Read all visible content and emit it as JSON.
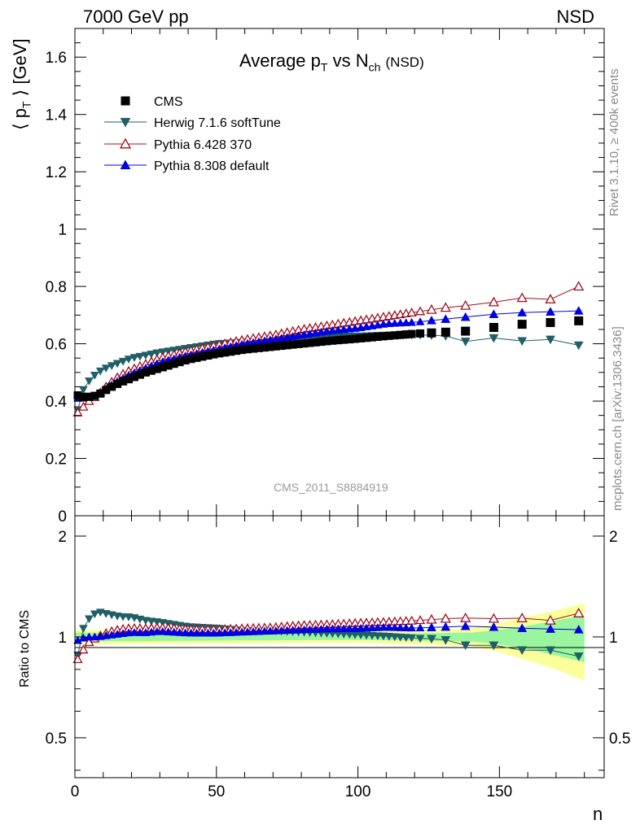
{
  "header": {
    "left": "7000 GeV pp",
    "right": "NSD"
  },
  "side_labels": {
    "rivet": "Rivet 3.1.10, ≥ 400k events",
    "mcplots": "mcplots.cern.ch [arXiv:1306.3436]"
  },
  "chart_data": {
    "type": "scatter",
    "title_parts": {
      "prefix": "Average p",
      "sub1": "T",
      "mid": " vs N",
      "sub2": "ch",
      "suffix": "(NSD)"
    },
    "analysis_label": "CMS_2011_S8884919",
    "xlabel": "n",
    "ylabel_main": "⟨ p_T ⟩ [GeV]",
    "ylabel_main_parts": {
      "open": "⟨ p",
      "sub": "T",
      "close": "⟩ [GeV]"
    },
    "ylabel_ratio": "Ratio to CMS",
    "xlim": [
      0,
      187
    ],
    "ylim_main": [
      0,
      1.7
    ],
    "ylim_ratio": [
      0.38,
      2.3
    ],
    "ratio_log_scale": true,
    "x_ticks": [
      "0",
      "50",
      "100",
      "150"
    ],
    "y_ticks_main": [
      "0",
      "0.2",
      "0.4",
      "0.6",
      "0.8",
      "1",
      "1.2",
      "1.4",
      "1.6"
    ],
    "y_ticks_ratio": [
      "0.5",
      "1",
      "2"
    ],
    "legend_placement": "top-left",
    "series": [
      {
        "name": "CMS",
        "color": "#000000",
        "marker": "square"
      },
      {
        "name": "Herwig 7.1.6 softTune",
        "color": "#1f5f66",
        "marker": "triangle-down"
      },
      {
        "name": "Pythia 6.428 370",
        "color": "#a01020",
        "marker": "triangle-up-open"
      },
      {
        "name": "Pythia 8.308 default",
        "color": "#0000e0",
        "marker": "triangle-up"
      }
    ],
    "curve_knots": {
      "CMS": [
        [
          1,
          0.42
        ],
        [
          3,
          0.415
        ],
        [
          5,
          0.415
        ],
        [
          8,
          0.42
        ],
        [
          12,
          0.445
        ],
        [
          16,
          0.465
        ],
        [
          20,
          0.48
        ],
        [
          25,
          0.5
        ],
        [
          30,
          0.515
        ],
        [
          35,
          0.53
        ],
        [
          40,
          0.545
        ],
        [
          50,
          0.565
        ],
        [
          60,
          0.58
        ],
        [
          70,
          0.59
        ],
        [
          80,
          0.6
        ],
        [
          90,
          0.61
        ],
        [
          100,
          0.618
        ],
        [
          110,
          0.627
        ],
        [
          120,
          0.635
        ],
        [
          130,
          0.64
        ],
        [
          140,
          0.645
        ],
        [
          150,
          0.66
        ],
        [
          160,
          0.67
        ],
        [
          170,
          0.675
        ],
        [
          178,
          0.68
        ]
      ],
      "Herwig 7.1.6 softTune": [
        [
          1,
          0.37
        ],
        [
          2,
          0.41
        ],
        [
          3,
          0.44
        ],
        [
          5,
          0.47
        ],
        [
          8,
          0.5
        ],
        [
          12,
          0.52
        ],
        [
          16,
          0.535
        ],
        [
          20,
          0.55
        ],
        [
          25,
          0.56
        ],
        [
          30,
          0.57
        ],
        [
          40,
          0.585
        ],
        [
          50,
          0.6
        ],
        [
          60,
          0.605
        ],
        [
          70,
          0.615
        ],
        [
          80,
          0.62
        ],
        [
          90,
          0.625
        ],
        [
          100,
          0.627
        ],
        [
          110,
          0.63
        ],
        [
          120,
          0.63
        ],
        [
          130,
          0.63
        ],
        [
          138,
          0.608
        ],
        [
          148,
          0.62
        ],
        [
          158,
          0.61
        ],
        [
          168,
          0.615
        ],
        [
          178,
          0.595
        ]
      ],
      "Pythia 6.428 370": [
        [
          1,
          0.36
        ],
        [
          3,
          0.38
        ],
        [
          5,
          0.4
        ],
        [
          8,
          0.42
        ],
        [
          12,
          0.46
        ],
        [
          16,
          0.49
        ],
        [
          20,
          0.51
        ],
        [
          25,
          0.53
        ],
        [
          30,
          0.55
        ],
        [
          40,
          0.575
        ],
        [
          50,
          0.595
        ],
        [
          60,
          0.615
        ],
        [
          70,
          0.63
        ],
        [
          80,
          0.65
        ],
        [
          90,
          0.665
        ],
        [
          100,
          0.68
        ],
        [
          110,
          0.695
        ],
        [
          120,
          0.71
        ],
        [
          130,
          0.725
        ],
        [
          140,
          0.735
        ],
        [
          148,
          0.745
        ],
        [
          158,
          0.76
        ],
        [
          168,
          0.755
        ],
        [
          178,
          0.8
        ]
      ],
      "Pythia 8.308 default": [
        [
          1,
          0.41
        ],
        [
          3,
          0.412
        ],
        [
          5,
          0.415
        ],
        [
          8,
          0.42
        ],
        [
          12,
          0.45
        ],
        [
          16,
          0.475
        ],
        [
          20,
          0.495
        ],
        [
          25,
          0.515
        ],
        [
          30,
          0.535
        ],
        [
          40,
          0.56
        ],
        [
          50,
          0.58
        ],
        [
          60,
          0.6
        ],
        [
          70,
          0.615
        ],
        [
          80,
          0.63
        ],
        [
          90,
          0.645
        ],
        [
          100,
          0.655
        ],
        [
          110,
          0.67
        ],
        [
          120,
          0.675
        ],
        [
          130,
          0.685
        ],
        [
          140,
          0.695
        ],
        [
          150,
          0.705
        ],
        [
          160,
          0.71
        ],
        [
          170,
          0.712
        ],
        [
          178,
          0.715
        ]
      ]
    },
    "bands": {
      "green_halfwidth": [
        [
          0,
          0.03
        ],
        [
          100,
          0.02
        ],
        [
          140,
          0.03
        ],
        [
          150,
          0.05
        ],
        [
          160,
          0.08
        ],
        [
          170,
          0.12
        ],
        [
          180,
          0.16
        ]
      ],
      "yellow_halfwidth": [
        [
          0,
          0.05
        ],
        [
          100,
          0.04
        ],
        [
          140,
          0.06
        ],
        [
          150,
          0.1
        ],
        [
          160,
          0.15
        ],
        [
          170,
          0.2
        ],
        [
          180,
          0.26
        ]
      ]
    }
  }
}
